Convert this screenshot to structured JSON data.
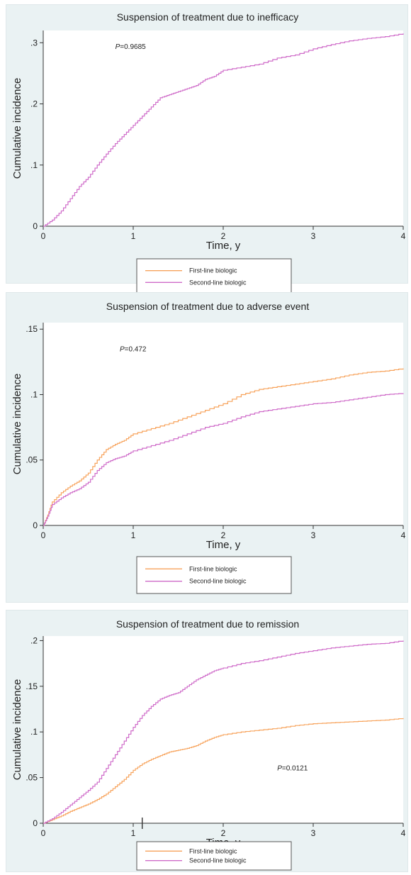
{
  "colors": {
    "first_line": "#f7a35c",
    "second_line": "#cf6cc9",
    "panel_bg": "#eaf2f3",
    "plot_bg": "#ffffff"
  },
  "chart_data": [
    {
      "type": "line",
      "title": "Suspension of treatment due to inefficacy",
      "xlabel": "Time, y",
      "ylabel": "Cumulative incidence",
      "xlim": [
        0,
        4
      ],
      "ylim": [
        0,
        0.32
      ],
      "xticks": [
        "0",
        "1",
        "2",
        "3",
        "4"
      ],
      "xtick_values": [
        0,
        1,
        2,
        3,
        4
      ],
      "yticks": [
        "0",
        ".1",
        ".2",
        ".3"
      ],
      "ytick_values": [
        0,
        0.1,
        0.2,
        0.3
      ],
      "annotation": {
        "prefix": "P",
        "text": "=0.9685",
        "x": 0.8,
        "y": 0.29
      },
      "legend": [
        "First-line biologic",
        "Second-line biologic"
      ],
      "legend_position": "bottom",
      "grid": false,
      "series": [
        {
          "name": "Second-line biologic",
          "color": "#cf6cc9",
          "x": [
            0,
            0.1,
            0.2,
            0.3,
            0.4,
            0.5,
            0.6,
            0.7,
            0.8,
            0.9,
            1.0,
            1.1,
            1.2,
            1.3,
            1.4,
            1.5,
            1.6,
            1.7,
            1.8,
            1.9,
            2.0,
            2.2,
            2.4,
            2.6,
            2.8,
            3.0,
            3.2,
            3.4,
            3.6,
            3.8,
            4.0
          ],
          "y": [
            0,
            0.01,
            0.025,
            0.045,
            0.065,
            0.08,
            0.1,
            0.118,
            0.135,
            0.15,
            0.165,
            0.18,
            0.195,
            0.21,
            0.215,
            0.22,
            0.225,
            0.23,
            0.24,
            0.245,
            0.255,
            0.26,
            0.265,
            0.275,
            0.28,
            0.29,
            0.297,
            0.303,
            0.307,
            0.31,
            0.315
          ]
        }
      ]
    },
    {
      "type": "line",
      "title": "Suspension of treatment due to adverse event",
      "xlabel": "Time, y",
      "ylabel": "Cumulative incidence",
      "xlim": [
        0,
        4
      ],
      "ylim": [
        0,
        0.155
      ],
      "xticks": [
        "0",
        "1",
        "2",
        "3",
        "4"
      ],
      "xtick_values": [
        0,
        1,
        2,
        3,
        4
      ],
      "yticks": [
        "0",
        ".05",
        ".1",
        ".15"
      ],
      "ytick_values": [
        0,
        0.05,
        0.1,
        0.15
      ],
      "annotation": {
        "prefix": "P",
        "text": "=0.472",
        "x": 0.85,
        "y": 0.133
      },
      "legend": [
        "First-line biologic",
        "Second-line biologic"
      ],
      "legend_position": "bottom",
      "grid": false,
      "series": [
        {
          "name": "First-line biologic",
          "color": "#f7a35c",
          "x": [
            0,
            0.05,
            0.1,
            0.2,
            0.3,
            0.4,
            0.5,
            0.6,
            0.7,
            0.8,
            0.9,
            1.0,
            1.2,
            1.4,
            1.6,
            1.8,
            2.0,
            2.2,
            2.4,
            2.6,
            2.8,
            3.0,
            3.2,
            3.4,
            3.6,
            3.8,
            4.0
          ],
          "y": [
            0,
            0.008,
            0.018,
            0.025,
            0.03,
            0.034,
            0.04,
            0.05,
            0.058,
            0.062,
            0.065,
            0.07,
            0.074,
            0.078,
            0.083,
            0.088,
            0.093,
            0.1,
            0.104,
            0.106,
            0.108,
            0.11,
            0.112,
            0.115,
            0.117,
            0.118,
            0.12
          ]
        },
        {
          "name": "Second-line biologic",
          "color": "#cf6cc9",
          "x": [
            0,
            0.05,
            0.1,
            0.2,
            0.3,
            0.4,
            0.5,
            0.6,
            0.7,
            0.8,
            0.9,
            1.0,
            1.2,
            1.4,
            1.6,
            1.8,
            2.0,
            2.2,
            2.4,
            2.6,
            2.8,
            3.0,
            3.2,
            3.4,
            3.6,
            3.8,
            4.0
          ],
          "y": [
            0,
            0.007,
            0.016,
            0.021,
            0.025,
            0.028,
            0.033,
            0.042,
            0.048,
            0.051,
            0.053,
            0.057,
            0.061,
            0.065,
            0.07,
            0.075,
            0.078,
            0.083,
            0.087,
            0.089,
            0.091,
            0.093,
            0.094,
            0.096,
            0.098,
            0.1,
            0.101
          ]
        }
      ]
    },
    {
      "type": "line",
      "title": "Suspension of treatment due to remission",
      "xlabel": "Time, y",
      "ylabel": "Cumulative incidence",
      "xlim": [
        0,
        4
      ],
      "ylim": [
        0,
        0.205
      ],
      "xticks": [
        "0",
        "1",
        "2",
        "3",
        "4"
      ],
      "xtick_values": [
        0,
        1,
        2,
        3,
        4
      ],
      "yticks": [
        "0",
        ".05",
        ".1",
        ".15",
        ".2"
      ],
      "ytick_values": [
        0,
        0.05,
        0.1,
        0.15,
        0.2
      ],
      "annotation": {
        "prefix": "P",
        "text": "=0.0121",
        "x": 2.6,
        "y": 0.058
      },
      "legend": [
        "First-line biologic",
        "Second-line biologic"
      ],
      "legend_position": "bottom",
      "grid": false,
      "series": [
        {
          "name": "First-line biologic",
          "color": "#f7a35c",
          "x": [
            0,
            0.1,
            0.2,
            0.3,
            0.4,
            0.5,
            0.6,
            0.7,
            0.8,
            0.9,
            1.0,
            1.1,
            1.2,
            1.3,
            1.4,
            1.5,
            1.6,
            1.7,
            1.8,
            1.9,
            2.0,
            2.2,
            2.4,
            2.6,
            2.8,
            3.0,
            3.2,
            3.4,
            3.6,
            3.8,
            4.0
          ],
          "y": [
            0,
            0.004,
            0.008,
            0.013,
            0.017,
            0.021,
            0.026,
            0.032,
            0.04,
            0.048,
            0.058,
            0.065,
            0.07,
            0.074,
            0.078,
            0.08,
            0.082,
            0.085,
            0.09,
            0.094,
            0.097,
            0.1,
            0.102,
            0.104,
            0.107,
            0.109,
            0.11,
            0.111,
            0.112,
            0.113,
            0.115
          ]
        },
        {
          "name": "Second-line biologic",
          "color": "#cf6cc9",
          "x": [
            0,
            0.1,
            0.2,
            0.3,
            0.4,
            0.5,
            0.6,
            0.7,
            0.8,
            0.9,
            1.0,
            1.1,
            1.2,
            1.3,
            1.4,
            1.5,
            1.6,
            1.7,
            1.8,
            1.9,
            2.0,
            2.2,
            2.4,
            2.6,
            2.8,
            3.0,
            3.2,
            3.4,
            3.6,
            3.8,
            4.0
          ],
          "y": [
            0,
            0.005,
            0.012,
            0.02,
            0.028,
            0.036,
            0.045,
            0.06,
            0.075,
            0.09,
            0.105,
            0.118,
            0.128,
            0.136,
            0.14,
            0.143,
            0.15,
            0.157,
            0.162,
            0.167,
            0.17,
            0.175,
            0.178,
            0.182,
            0.186,
            0.189,
            0.192,
            0.194,
            0.196,
            0.197,
            0.2
          ]
        }
      ]
    }
  ]
}
